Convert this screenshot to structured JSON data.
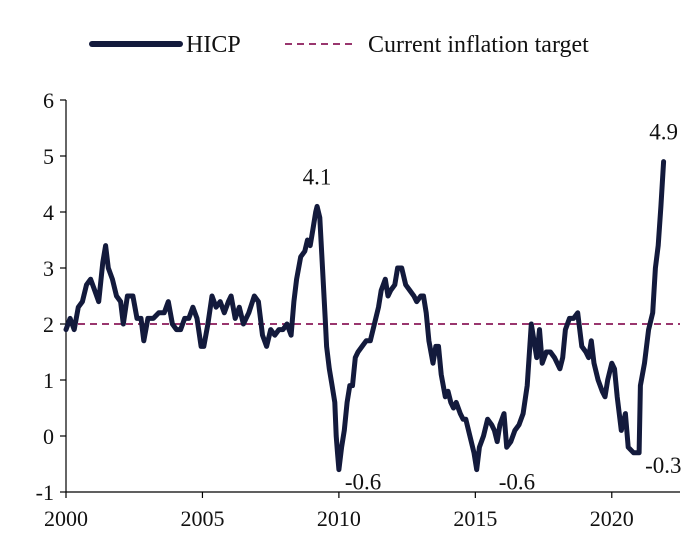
{
  "chart_data": {
    "type": "line",
    "title": "",
    "xlabel": "",
    "ylabel": "",
    "xlim": [
      2000,
      2022.5
    ],
    "ylim": [
      -1,
      6
    ],
    "x_ticks": [
      2000,
      2005,
      2010,
      2015,
      2020
    ],
    "x_tick_labels": [
      "2000",
      "2005",
      "2010",
      "2015",
      "2020"
    ],
    "y_ticks": [
      -1,
      0,
      1,
      2,
      3,
      4,
      5,
      6
    ],
    "y_tick_labels": [
      "-1",
      "0",
      "1",
      "2",
      "3",
      "4",
      "5",
      "6"
    ],
    "grid": false,
    "legend_position": "top",
    "legend": [
      {
        "label": "HICP",
        "style": "solid"
      },
      {
        "label": "Current inflation target",
        "style": "dashed"
      }
    ],
    "colors": {
      "hicp": "#131a3c",
      "target": "#8b1a5a"
    },
    "series": [
      {
        "name": "HICP",
        "points": [
          [
            2000.0,
            1.9
          ],
          [
            2000.15,
            2.1
          ],
          [
            2000.3,
            1.9
          ],
          [
            2000.45,
            2.3
          ],
          [
            2000.6,
            2.4
          ],
          [
            2000.75,
            2.7
          ],
          [
            2000.9,
            2.8
          ],
          [
            2001.05,
            2.6
          ],
          [
            2001.2,
            2.4
          ],
          [
            2001.35,
            3.1
          ],
          [
            2001.45,
            3.4
          ],
          [
            2001.55,
            3.0
          ],
          [
            2001.7,
            2.8
          ],
          [
            2001.85,
            2.5
          ],
          [
            2002.0,
            2.4
          ],
          [
            2002.1,
            2.0
          ],
          [
            2002.25,
            2.5
          ],
          [
            2002.45,
            2.5
          ],
          [
            2002.6,
            2.1
          ],
          [
            2002.75,
            2.1
          ],
          [
            2002.85,
            1.7
          ],
          [
            2003.0,
            2.1
          ],
          [
            2003.2,
            2.1
          ],
          [
            2003.4,
            2.2
          ],
          [
            2003.6,
            2.2
          ],
          [
            2003.75,
            2.4
          ],
          [
            2003.9,
            2.0
          ],
          [
            2004.05,
            1.9
          ],
          [
            2004.2,
            1.9
          ],
          [
            2004.35,
            2.1
          ],
          [
            2004.5,
            2.1
          ],
          [
            2004.65,
            2.3
          ],
          [
            2004.8,
            2.1
          ],
          [
            2004.95,
            1.6
          ],
          [
            2005.05,
            1.6
          ],
          [
            2005.2,
            2.0
          ],
          [
            2005.35,
            2.5
          ],
          [
            2005.5,
            2.3
          ],
          [
            2005.65,
            2.4
          ],
          [
            2005.8,
            2.2
          ],
          [
            2005.95,
            2.4
          ],
          [
            2006.05,
            2.5
          ],
          [
            2006.2,
            2.1
          ],
          [
            2006.35,
            2.3
          ],
          [
            2006.5,
            2.0
          ],
          [
            2006.7,
            2.2
          ],
          [
            2006.9,
            2.5
          ],
          [
            2007.05,
            2.4
          ],
          [
            2007.2,
            1.8
          ],
          [
            2007.35,
            1.6
          ],
          [
            2007.5,
            1.9
          ],
          [
            2007.65,
            1.8
          ],
          [
            2007.8,
            1.9
          ],
          [
            2007.95,
            1.9
          ],
          [
            2008.1,
            2.0
          ],
          [
            2008.25,
            1.8
          ],
          [
            2008.35,
            2.4
          ],
          [
            2008.45,
            2.8
          ],
          [
            2008.6,
            3.2
          ],
          [
            2008.75,
            3.3
          ],
          [
            2008.85,
            3.5
          ],
          [
            2008.95,
            3.4
          ],
          [
            2009.05,
            3.7
          ],
          [
            2009.15,
            4.0
          ],
          [
            2009.2,
            4.1
          ],
          [
            2009.3,
            3.9
          ],
          [
            2009.4,
            3.0
          ],
          [
            2009.5,
            2.1
          ],
          [
            2009.55,
            1.6
          ],
          [
            2009.65,
            1.2
          ],
          [
            2009.75,
            0.9
          ],
          [
            2009.85,
            0.6
          ],
          [
            2009.9,
            0.0
          ],
          [
            2009.95,
            -0.3
          ],
          [
            2010.0,
            -0.6
          ],
          [
            2010.1,
            -0.2
          ],
          [
            2010.2,
            0.1
          ],
          [
            2010.3,
            0.6
          ],
          [
            2010.4,
            0.9
          ],
          [
            2010.5,
            0.9
          ],
          [
            2010.6,
            1.4
          ],
          [
            2010.7,
            1.5
          ],
          [
            2010.85,
            1.6
          ],
          [
            2011.0,
            1.7
          ],
          [
            2011.15,
            1.7
          ],
          [
            2011.3,
            2.0
          ],
          [
            2011.45,
            2.3
          ],
          [
            2011.55,
            2.6
          ],
          [
            2011.7,
            2.8
          ],
          [
            2011.8,
            2.5
          ],
          [
            2011.9,
            2.6
          ],
          [
            2012.05,
            2.7
          ],
          [
            2012.15,
            3.0
          ],
          [
            2012.3,
            3.0
          ],
          [
            2012.45,
            2.7
          ],
          [
            2012.6,
            2.6
          ],
          [
            2012.75,
            2.5
          ],
          [
            2012.85,
            2.4
          ],
          [
            2013.0,
            2.5
          ],
          [
            2013.1,
            2.5
          ],
          [
            2013.2,
            2.2
          ],
          [
            2013.3,
            1.7
          ],
          [
            2013.45,
            1.3
          ],
          [
            2013.55,
            1.6
          ],
          [
            2013.65,
            1.6
          ],
          [
            2013.75,
            1.1
          ],
          [
            2013.9,
            0.7
          ],
          [
            2014.0,
            0.8
          ],
          [
            2014.1,
            0.6
          ],
          [
            2014.2,
            0.5
          ],
          [
            2014.3,
            0.6
          ],
          [
            2014.45,
            0.4
          ],
          [
            2014.55,
            0.3
          ],
          [
            2014.65,
            0.3
          ],
          [
            2014.8,
            0.0
          ],
          [
            2014.95,
            -0.3
          ],
          [
            2015.05,
            -0.6
          ],
          [
            2015.15,
            -0.2
          ],
          [
            2015.3,
            0.0
          ],
          [
            2015.45,
            0.3
          ],
          [
            2015.6,
            0.2
          ],
          [
            2015.7,
            0.1
          ],
          [
            2015.8,
            -0.1
          ],
          [
            2015.9,
            0.2
          ],
          [
            2016.05,
            0.4
          ],
          [
            2016.15,
            -0.2
          ],
          [
            2016.3,
            -0.1
          ],
          [
            2016.45,
            0.1
          ],
          [
            2016.6,
            0.2
          ],
          [
            2016.75,
            0.4
          ],
          [
            2016.9,
            0.9
          ],
          [
            2017.05,
            2.0
          ],
          [
            2017.15,
            1.7
          ],
          [
            2017.25,
            1.4
          ],
          [
            2017.35,
            1.9
          ],
          [
            2017.45,
            1.3
          ],
          [
            2017.6,
            1.5
          ],
          [
            2017.75,
            1.5
          ],
          [
            2017.9,
            1.4
          ],
          [
            2018.0,
            1.3
          ],
          [
            2018.1,
            1.2
          ],
          [
            2018.2,
            1.4
          ],
          [
            2018.3,
            1.9
          ],
          [
            2018.45,
            2.1
          ],
          [
            2018.6,
            2.1
          ],
          [
            2018.75,
            2.2
          ],
          [
            2018.9,
            1.6
          ],
          [
            2019.05,
            1.5
          ],
          [
            2019.15,
            1.4
          ],
          [
            2019.25,
            1.7
          ],
          [
            2019.35,
            1.3
          ],
          [
            2019.5,
            1.0
          ],
          [
            2019.65,
            0.8
          ],
          [
            2019.75,
            0.7
          ],
          [
            2019.85,
            1.0
          ],
          [
            2020.0,
            1.3
          ],
          [
            2020.1,
            1.2
          ],
          [
            2020.2,
            0.7
          ],
          [
            2020.35,
            0.1
          ],
          [
            2020.5,
            0.4
          ],
          [
            2020.6,
            -0.2
          ],
          [
            2020.8,
            -0.3
          ],
          [
            2021.0,
            -0.3
          ],
          [
            2021.05,
            0.9
          ],
          [
            2021.2,
            1.3
          ],
          [
            2021.35,
            1.9
          ],
          [
            2021.5,
            2.2
          ],
          [
            2021.6,
            3.0
          ],
          [
            2021.7,
            3.4
          ],
          [
            2021.8,
            4.1
          ],
          [
            2021.9,
            4.9
          ]
        ]
      },
      {
        "name": "Current inflation target",
        "points": [
          [
            2000.0,
            2.0
          ],
          [
            2022.5,
            2.0
          ]
        ]
      }
    ],
    "annotations": [
      {
        "text": "4.1",
        "x": 2009.2,
        "y": 4.1,
        "anchor": "above"
      },
      {
        "text": "-0.6",
        "x": 2010.0,
        "y": -0.6,
        "anchor": "right"
      },
      {
        "text": "-0.6",
        "x": 2015.05,
        "y": -0.6,
        "anchor": "right-far"
      },
      {
        "text": "-0.3",
        "x": 2021.0,
        "y": -0.3,
        "anchor": "right"
      },
      {
        "text": "4.9",
        "x": 2021.9,
        "y": 4.9,
        "anchor": "above"
      }
    ]
  }
}
